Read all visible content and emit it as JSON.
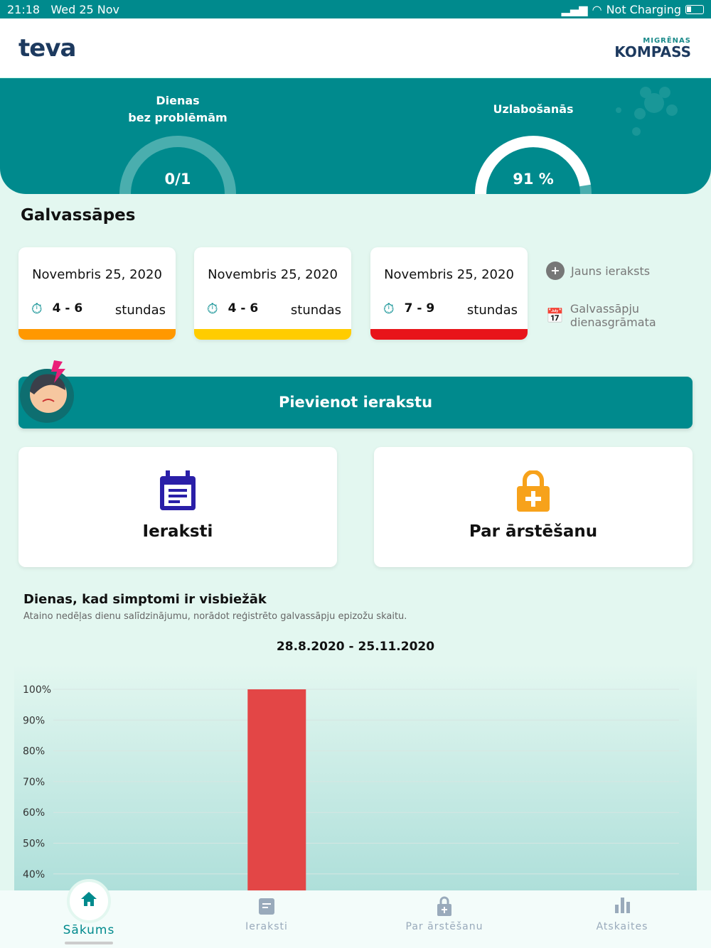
{
  "status_bar": {
    "time": "21:18",
    "date": "Wed 25 Nov",
    "battery": "Not Charging"
  },
  "header": {
    "logo_left": "teva",
    "logo_right_small": "MIGRĒNAS",
    "logo_right_big": "KOMPASS"
  },
  "hero": {
    "stats": [
      {
        "title_line1": "Dienas",
        "title_line2": "bez problēmām",
        "value": "0/1",
        "fraction": 0
      },
      {
        "title_line1": "Uzlabošanās",
        "title_line2": "",
        "value": "91 %",
        "fraction": 0.91
      }
    ]
  },
  "headaches": {
    "title": "Galvassāpes",
    "cards": [
      {
        "date": "Novembris 25, 2020",
        "hours": "4 - 6",
        "unit": "stundas",
        "color": "#ff9800"
      },
      {
        "date": "Novembris 25, 2020",
        "hours": "4 - 6",
        "unit": "stundas",
        "color": "#ffcc00"
      },
      {
        "date": "Novembris 25, 2020",
        "hours": "7 - 9",
        "unit": "stundas",
        "color": "#e8141a"
      }
    ],
    "new_entry": "Jauns ieraksts",
    "diary": "Galvassāpju dienasgrāmata"
  },
  "add_button": "Pievienot ierakstu",
  "tiles": [
    {
      "label": "Ieraksti",
      "color": "#2a1fa8"
    },
    {
      "label": "Par ārstēšanu",
      "color": "#f7a21b"
    }
  ],
  "chart_section": {
    "title": "Dienas, kad simptomi ir visbiežāk",
    "subtitle": "Ataino nedēļas dienu salīdzinājumu, norādot reģistrēto galvassāpju epizožu skaitu.",
    "range": "28.8.2020 - 25.11.2020"
  },
  "chart_data": {
    "type": "bar",
    "values": [
      0,
      0,
      100,
      0,
      0,
      0,
      0
    ],
    "ylim": [
      0,
      100
    ],
    "yticks": [
      "100%",
      "90%",
      "80%",
      "70%",
      "60%",
      "50%",
      "40%"
    ],
    "grid": true,
    "bar_color": "#e34646"
  },
  "nav": [
    {
      "label": "Sākums",
      "active": true
    },
    {
      "label": "Ieraksti"
    },
    {
      "label": "Par ārstēšanu"
    },
    {
      "label": "Atskaites"
    }
  ]
}
